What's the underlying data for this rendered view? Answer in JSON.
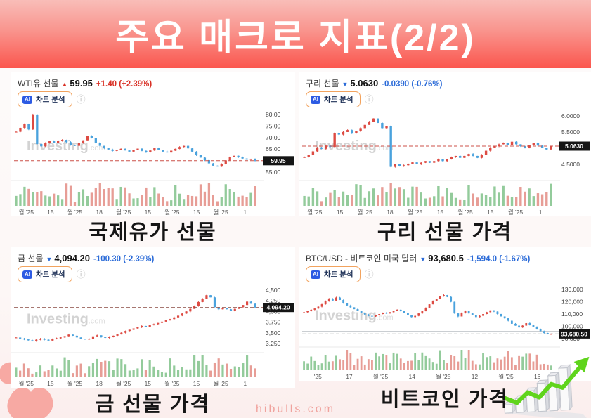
{
  "header": {
    "title": "주요 매크로 지표(2/2)"
  },
  "footer": {
    "site": "hibulls.com"
  },
  "watermark": {
    "brand": "Investing",
    "domain": ".com"
  },
  "ai_button": {
    "badge": "AI",
    "label": "차트 분석",
    "info_icon": "ⓘ"
  },
  "colors": {
    "banner_top": "#f9bdb8",
    "banner_bottom": "#fb564e",
    "text_up": "#d93025",
    "text_down": "#2b6bd8",
    "candle_up": "#dd4b43",
    "candle_down": "#4aa2dd",
    "vol_up": "#93cb9b",
    "vol_down": "#e79d96",
    "price_box_bg": "#151515",
    "price_box_text": "#ffffff"
  },
  "panels": [
    {
      "name": "WTI유 선물",
      "arrow": "▲",
      "price": "59.95",
      "change": "+1.40 (+2.39%)",
      "direction": "up",
      "caption": "국제유가 선물"
    },
    {
      "name": "구리 선물",
      "arrow": "▼",
      "price": "5.0630",
      "change": "-0.0390 (-0.76%)",
      "direction": "down",
      "caption": "구리 선물 가격"
    },
    {
      "name": "금 선물",
      "arrow": "▼",
      "price": "4,094.20",
      "change": "-100.30 (-2.39%)",
      "direction": "down",
      "caption": "금 선물 가격"
    },
    {
      "name": "BTC/USD - 비트코인 미국 달러",
      "arrow": "▼",
      "price": "93,680.5",
      "change": "-1,594.0 (-1.67%)",
      "direction": "down",
      "caption": "비트코인 가격"
    }
  ],
  "chart_data": [
    {
      "type": "candlestick",
      "instrument": "WTI유 선물",
      "last": 59.95,
      "price_label": "59.95",
      "ylim": [
        53.5,
        81.5
      ],
      "line_color": "#cc5049",
      "extra_line": null,
      "y_ticks": [
        {
          "label": "80.00",
          "value": 80
        },
        {
          "label": "75.00",
          "value": 75
        },
        {
          "label": "70.00",
          "value": 70
        },
        {
          "label": "65.00",
          "value": 65
        },
        {
          "label": "55.00",
          "value": 55
        }
      ],
      "x_ticks": [
        "월 '25",
        "15",
        "월 '25",
        "18",
        "월 '25",
        "15",
        "월 '25",
        "15",
        "월 '25",
        "1"
      ],
      "closes": [
        72.5,
        74.2,
        75.8,
        73.5,
        80.0,
        67.2,
        66.2,
        67.6,
        68.4,
        67.8,
        68.6,
        69.0,
        68.0,
        66.8,
        66.4,
        67.6,
        68.8,
        70.6,
        69.8,
        67.8,
        66.4,
        65.4,
        64.8,
        64.2,
        64.6,
        65.1,
        64.4,
        63.9,
        64.6,
        65.2,
        64.2,
        63.7,
        64.4,
        65.4,
        64.7,
        63.9,
        63.5,
        64.3,
        65.1,
        65.9,
        66.4,
        65.3,
        63.9,
        62.4,
        61.3,
        60.2,
        58.8,
        57.8,
        57.4,
        58.6,
        60.1,
        61.6,
        62.1,
        61.4,
        60.9,
        60.4,
        60.8,
        59.95
      ]
    },
    {
      "type": "candlestick",
      "instrument": "구리 선물",
      "last": 5.063,
      "price_label": "5.0630",
      "ylim": [
        4.15,
        6.15
      ],
      "line_color": "#cc5049",
      "extra_line": null,
      "y_ticks": [
        {
          "label": "6.0000",
          "value": 6.0
        },
        {
          "label": "5.5000",
          "value": 5.5
        },
        {
          "label": "4.5000",
          "value": 4.5
        }
      ],
      "x_ticks": [
        "월 '25",
        "15",
        "월 '25",
        "18",
        "월 '25",
        "15",
        "월 '25",
        "15",
        "월 '25",
        "1"
      ],
      "closes": [
        4.72,
        4.8,
        4.9,
        5.02,
        4.98,
        5.08,
        5.04,
        5.46,
        5.42,
        5.5,
        5.56,
        5.46,
        5.52,
        5.62,
        5.72,
        5.82,
        5.92,
        5.78,
        5.62,
        5.68,
        4.42,
        4.5,
        4.44,
        4.47,
        4.52,
        4.56,
        4.5,
        4.55,
        4.6,
        4.55,
        4.6,
        4.66,
        4.6,
        4.66,
        4.72,
        4.76,
        4.7,
        4.76,
        4.82,
        4.76,
        4.7,
        4.8,
        4.92,
        5.02,
        5.06,
        5.12,
        5.16,
        5.1,
        5.2,
        5.12,
        5.06,
        5.0,
        5.1,
        5.16,
        5.08,
        5.0,
        4.96,
        5.063
      ]
    },
    {
      "type": "candlestick",
      "instrument": "금 선물",
      "last": 4094.2,
      "price_label": "4,094.20",
      "ylim": [
        3150,
        4600
      ],
      "line_color": "#8a4a42",
      "extra_line": null,
      "y_ticks": [
        {
          "label": "4,500",
          "value": 4500
        },
        {
          "label": "4,250",
          "value": 4250
        },
        {
          "label": "4,000",
          "value": 4000
        },
        {
          "label": "3,750",
          "value": 3750
        },
        {
          "label": "3,500",
          "value": 3500
        },
        {
          "label": "3,250",
          "value": 3250
        }
      ],
      "x_ticks": [
        "월 '25",
        "15",
        "월 '25",
        "18",
        "월 '25",
        "15",
        "월 '25",
        "15",
        "월 '25",
        "1"
      ],
      "closes": [
        3390,
        3365,
        3345,
        3325,
        3308,
        3338,
        3358,
        3338,
        3318,
        3348,
        3372,
        3392,
        3422,
        3458,
        3432,
        3392,
        3362,
        3342,
        3362,
        3418,
        3442,
        3402,
        3382,
        3402,
        3432,
        3462,
        3502,
        3542,
        3572,
        3602,
        3632,
        3662,
        3642,
        3682,
        3702,
        3732,
        3762,
        3792,
        3822,
        3862,
        3902,
        3952,
        4002,
        4062,
        4132,
        4222,
        4302,
        4382,
        4332,
        4102,
        4052,
        4082,
        4052,
        4022,
        4062,
        4102,
        4152,
        4232,
        4182,
        4094.2
      ]
    },
    {
      "type": "candlestick",
      "instrument": "BTC/USD",
      "last": 93680.5,
      "price_label": "93,680.50",
      "ylim": [
        87000,
        133000
      ],
      "line_color": "#5f6368",
      "extra_line": {
        "value": 95800,
        "color": "#b9bdc4"
      },
      "y_ticks": [
        {
          "label": "130,000",
          "value": 130000
        },
        {
          "label": "120,000",
          "value": 120000
        },
        {
          "label": "110,000",
          "value": 110000
        },
        {
          "label": "100,000",
          "value": 100000
        },
        {
          "label": "90,000",
          "value": 90000
        }
      ],
      "x_ticks": [
        "'25",
        "17",
        "월 '25",
        "14",
        "월 '25",
        "12",
        "월 '25",
        "16"
      ],
      "closes": [
        111500,
        112500,
        113500,
        114500,
        116000,
        118000,
        120500,
        122500,
        121000,
        123500,
        121500,
        119000,
        117000,
        115500,
        114000,
        112500,
        111000,
        109500,
        108500,
        108000,
        109000,
        110000,
        111000,
        110500,
        111500,
        112500,
        113500,
        112500,
        111000,
        109000,
        107500,
        108500,
        110500,
        112500,
        115000,
        118000,
        120500,
        122500,
        124500,
        125500,
        124000,
        120000,
        110500,
        108000,
        111000,
        112500,
        110500,
        109000,
        107500,
        108500,
        110000,
        111500,
        113000,
        112000,
        110000,
        108000,
        106500,
        104500,
        102000,
        100500,
        99000,
        100500,
        102500,
        101000,
        99500,
        97500,
        96000,
        94500,
        93500,
        93680.5
      ]
    }
  ]
}
